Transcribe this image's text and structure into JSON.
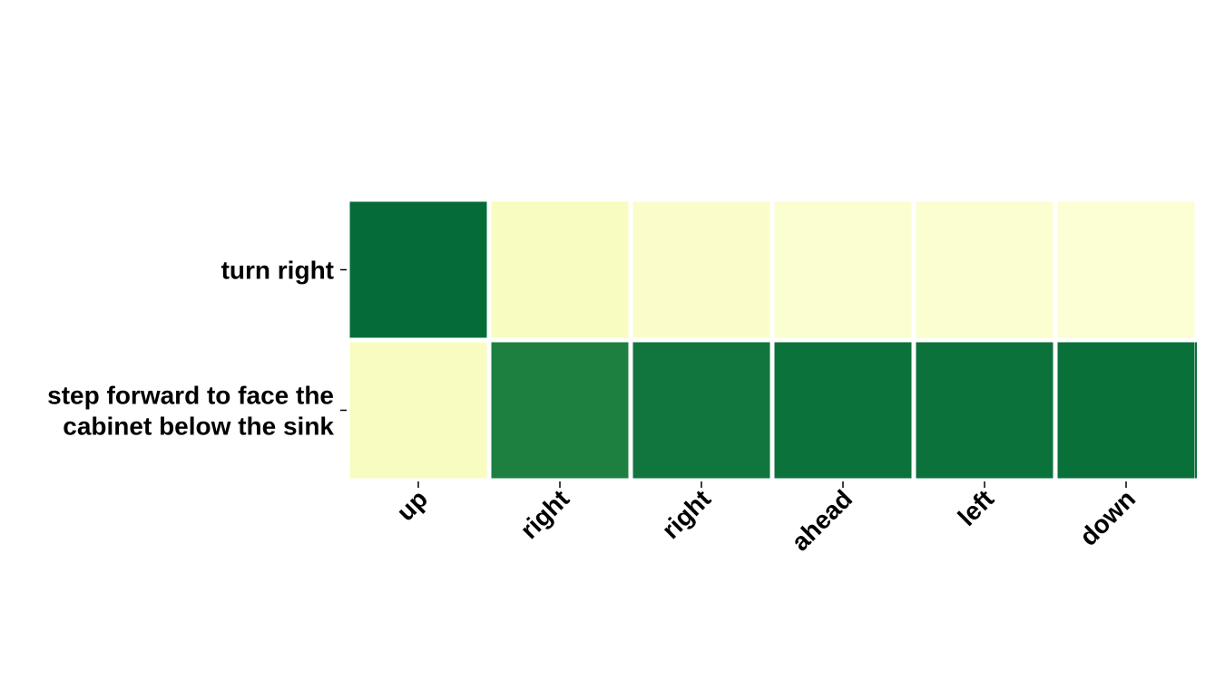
{
  "chart_data": {
    "type": "heatmap",
    "title": "",
    "xlabel": "",
    "ylabel": "",
    "x_categories": [
      "up",
      "right",
      "right",
      "ahead",
      "left",
      "down"
    ],
    "y_categories": [
      [
        "turn right"
      ],
      [
        "step forward to face the",
        "cabinet below the sink"
      ]
    ],
    "values": [
      [
        0.98,
        0.12,
        0.09,
        0.07,
        0.07,
        0.06
      ],
      [
        0.12,
        0.88,
        0.93,
        0.95,
        0.95,
        0.96
      ]
    ],
    "value_range": [
      0,
      1
    ],
    "colormap": [
      "#ffffe5",
      "#f7fcb9",
      "#d9f0a3",
      "#addd8e",
      "#78c679",
      "#41ab5d",
      "#238443",
      "#006837"
    ],
    "grid": false,
    "legend": "none"
  }
}
